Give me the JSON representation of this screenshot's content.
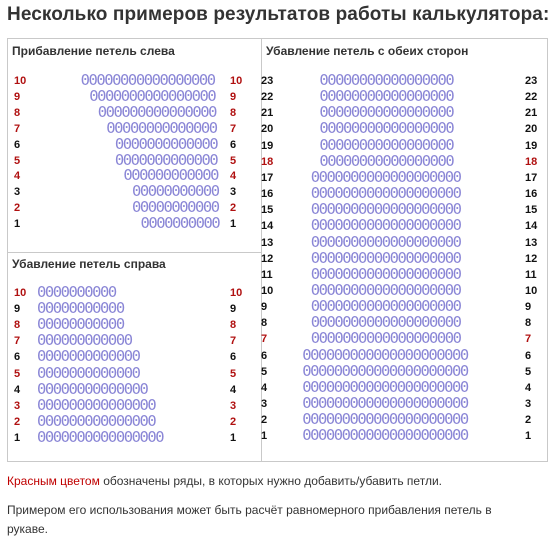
{
  "title": "Несколько примеров результатов работы калькулятора:",
  "loop_glyph": "0",
  "colors": {
    "loops": "#8a86d6",
    "highlight": "#c00000"
  },
  "panels": {
    "left_increase": {
      "title": "Прибавление петель слева",
      "rows": [
        {
          "n": "10",
          "loops": 17,
          "hl": true
        },
        {
          "n": "9",
          "loops": 16,
          "hl": true
        },
        {
          "n": "8",
          "loops": 15,
          "hl": true
        },
        {
          "n": "7",
          "loops": 14,
          "hl": true
        },
        {
          "n": "6",
          "loops": 13,
          "hl": false
        },
        {
          "n": "5",
          "loops": 13,
          "hl": true
        },
        {
          "n": "4",
          "loops": 12,
          "hl": true
        },
        {
          "n": "3",
          "loops": 11,
          "hl": false
        },
        {
          "n": "2",
          "loops": 11,
          "hl": true
        },
        {
          "n": "1",
          "loops": 10,
          "hl": false
        }
      ]
    },
    "right_decrease": {
      "title": "Убавление петель справа",
      "rows": [
        {
          "n": "10",
          "loops": 10,
          "hl": true
        },
        {
          "n": "9",
          "loops": 11,
          "hl": false
        },
        {
          "n": "8",
          "loops": 11,
          "hl": true
        },
        {
          "n": "7",
          "loops": 12,
          "hl": true
        },
        {
          "n": "6",
          "loops": 13,
          "hl": false
        },
        {
          "n": "5",
          "loops": 13,
          "hl": true
        },
        {
          "n": "4",
          "loops": 14,
          "hl": false
        },
        {
          "n": "3",
          "loops": 15,
          "hl": true
        },
        {
          "n": "2",
          "loops": 15,
          "hl": true
        },
        {
          "n": "1",
          "loops": 16,
          "hl": false
        }
      ]
    },
    "both_sides_decrease": {
      "title": "Убавление петель с обеих сторон",
      "rows": [
        {
          "n": "23",
          "loops": 17,
          "hl": false
        },
        {
          "n": "22",
          "loops": 17,
          "hl": false
        },
        {
          "n": "21",
          "loops": 17,
          "hl": false
        },
        {
          "n": "20",
          "loops": 17,
          "hl": false
        },
        {
          "n": "19",
          "loops": 17,
          "hl": false
        },
        {
          "n": "18",
          "loops": 17,
          "hl": true
        },
        {
          "n": "17",
          "loops": 19,
          "hl": false
        },
        {
          "n": "16",
          "loops": 19,
          "hl": false
        },
        {
          "n": "15",
          "loops": 19,
          "hl": false
        },
        {
          "n": "14",
          "loops": 19,
          "hl": false
        },
        {
          "n": "13",
          "loops": 19,
          "hl": false
        },
        {
          "n": "12",
          "loops": 19,
          "hl": false
        },
        {
          "n": "11",
          "loops": 19,
          "hl": false
        },
        {
          "n": "10",
          "loops": 19,
          "hl": false
        },
        {
          "n": "9",
          "loops": 19,
          "hl": false
        },
        {
          "n": "8",
          "loops": 19,
          "hl": false
        },
        {
          "n": "7",
          "loops": 19,
          "hl": true
        },
        {
          "n": "6",
          "loops": 21,
          "hl": false
        },
        {
          "n": "5",
          "loops": 21,
          "hl": false
        },
        {
          "n": "4",
          "loops": 21,
          "hl": false
        },
        {
          "n": "3",
          "loops": 21,
          "hl": false
        },
        {
          "n": "2",
          "loops": 21,
          "hl": false
        },
        {
          "n": "1",
          "loops": 21,
          "hl": false
        }
      ]
    }
  },
  "notes": {
    "legend_red": "Красным цветом",
    "legend_rest": " обозначены ряды, в которых нужно добавить/убавить петли.",
    "example": "Примером его использования может быть расчёт равномерного прибавления петель в рукаве."
  }
}
